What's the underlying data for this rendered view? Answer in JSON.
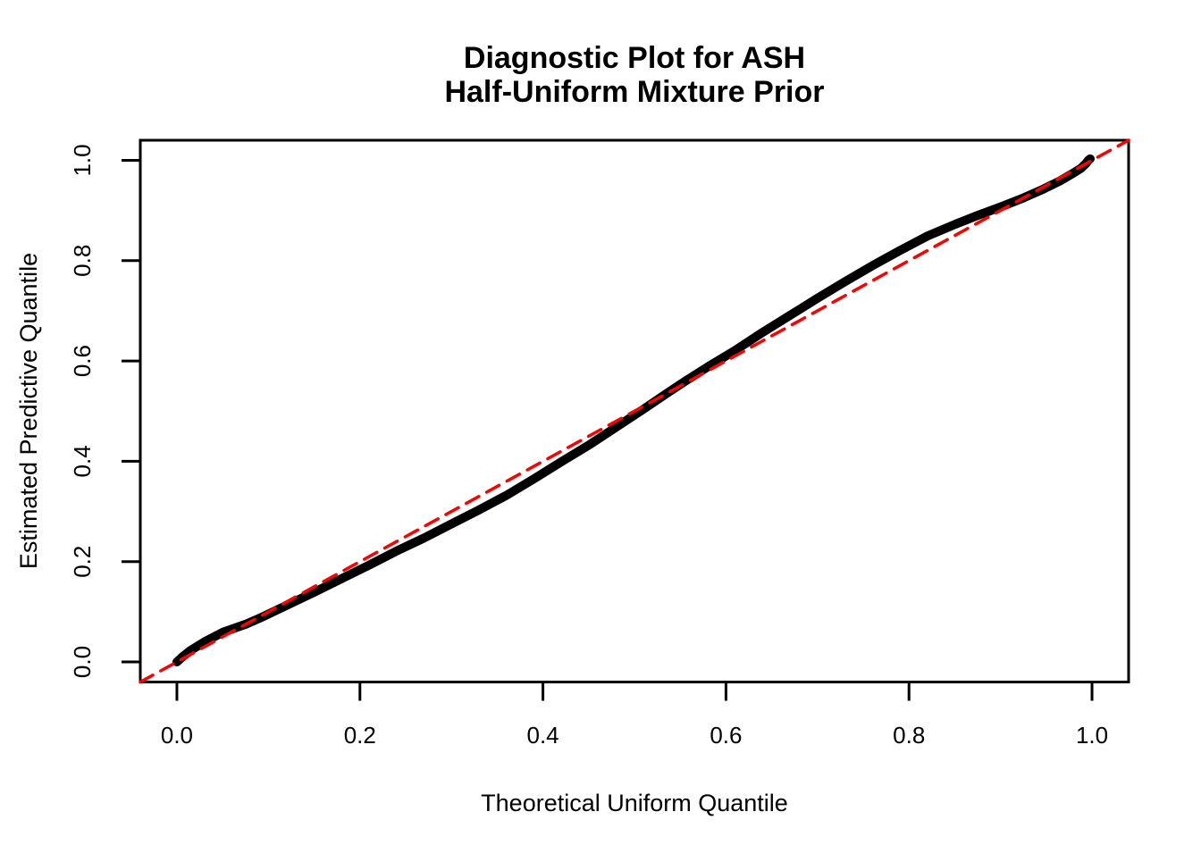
{
  "chart_data": {
    "type": "line",
    "title_lines": [
      "Diagnostic Plot for ASH",
      "Half-Uniform Mixture Prior"
    ],
    "xlabel": "Theoretical Uniform Quantile",
    "ylabel": "Estimated Predictive Quantile",
    "xlim": [
      -0.04,
      1.04
    ],
    "ylim": [
      -0.04,
      1.04
    ],
    "x_ticks": [
      0.0,
      0.2,
      0.4,
      0.6,
      0.8,
      1.0
    ],
    "x_tick_labels": [
      "0.0",
      "0.2",
      "0.4",
      "0.6",
      "0.8",
      "1.0"
    ],
    "y_ticks": [
      0.0,
      0.2,
      0.4,
      0.6,
      0.8,
      1.0
    ],
    "y_tick_labels": [
      "0.0",
      "0.2",
      "0.4",
      "0.6",
      "0.8",
      "1.0"
    ],
    "grid": false,
    "legend": null,
    "series": [
      {
        "name": "estimated-predictive-quantiles",
        "color": "#000000",
        "style": "thick-line",
        "x": [
          0.0,
          0.006,
          0.015,
          0.03,
          0.05,
          0.075,
          0.095,
          0.12,
          0.15,
          0.18,
          0.21,
          0.24,
          0.27,
          0.3,
          0.33,
          0.36,
          0.39,
          0.42,
          0.45,
          0.48,
          0.51,
          0.535,
          0.555,
          0.58,
          0.61,
          0.64,
          0.67,
          0.7,
          0.73,
          0.76,
          0.79,
          0.82,
          0.85,
          0.875,
          0.9,
          0.925,
          0.945,
          0.965,
          0.98,
          0.988,
          0.993,
          0.996,
          0.998
        ],
        "y": [
          0.0,
          0.01,
          0.023,
          0.04,
          0.059,
          0.075,
          0.091,
          0.113,
          0.139,
          0.166,
          0.193,
          0.221,
          0.247,
          0.275,
          0.303,
          0.332,
          0.365,
          0.399,
          0.432,
          0.468,
          0.504,
          0.535,
          0.559,
          0.588,
          0.621,
          0.657,
          0.691,
          0.725,
          0.758,
          0.79,
          0.82,
          0.849,
          0.872,
          0.89,
          0.907,
          0.925,
          0.941,
          0.959,
          0.975,
          0.984,
          0.993,
          1.0,
          1.003
        ]
      },
      {
        "name": "identity-reference-line",
        "color": "#FF0000",
        "style": "dashed",
        "x": [
          -0.04,
          1.04
        ],
        "y": [
          -0.04,
          1.04
        ]
      }
    ]
  }
}
